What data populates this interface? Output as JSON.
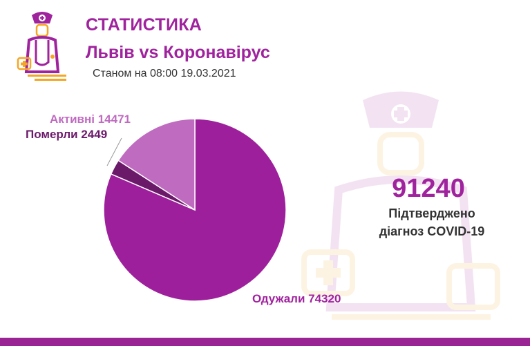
{
  "header": {
    "title": "СТАТИСТИКА",
    "subtitle": "Львів vs Коронавірус",
    "date": "Станом на 08:00 19.03.2021"
  },
  "summary": {
    "total": "91240",
    "caption_line1": "Підтверджено",
    "caption_line2": "діагноз COVID-19"
  },
  "colors": {
    "brand": "#a0239e",
    "recovered": "#9e1f9c",
    "deceased": "#6b1a6a",
    "active": "#bf6bc0",
    "bar": "#9b2495",
    "logo_orange": "#f5a623"
  },
  "icons": [
    "doctor-logo-icon",
    "doctor-watermark-icon"
  ],
  "chart_data": {
    "type": "pie",
    "slices": [
      {
        "name": "Одужали",
        "value": 74320,
        "label": "Одужали 74320"
      },
      {
        "name": "Померли",
        "value": 2449,
        "label": "Померли 2449"
      },
      {
        "name": "Активні",
        "value": 14471,
        "label": "Активні 14471"
      }
    ]
  }
}
